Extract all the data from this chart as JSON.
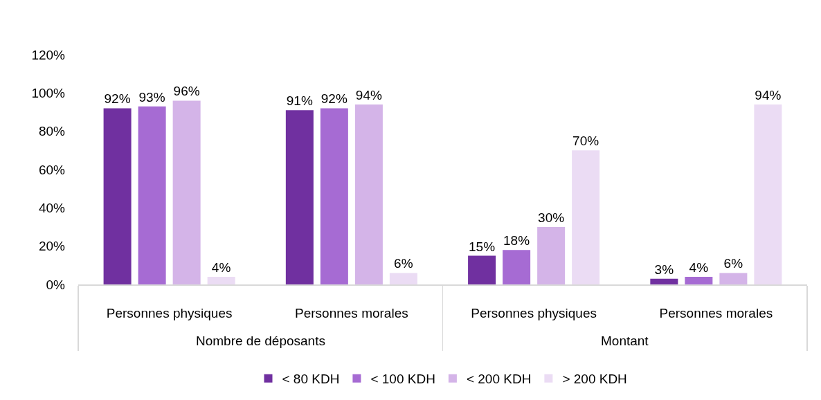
{
  "chart_data": {
    "type": "bar",
    "categories": [
      "Personnes physiques",
      "Personnes morales",
      "Personnes physiques",
      "Personnes morales"
    ],
    "annotations": [
      "Nombre de déposants",
      "Montant"
    ],
    "series": [
      {
        "name": "< 80 KDH",
        "color": "#7030a0",
        "values": [
          92,
          91,
          15,
          3
        ],
        "value_labels": [
          "92%",
          "91%",
          "15%",
          "3%"
        ]
      },
      {
        "name": "< 100 KDH",
        "color": "#a66bd3",
        "values": [
          93,
          92,
          18,
          4
        ],
        "value_labels": [
          "93%",
          "92%",
          "18%",
          "4%"
        ]
      },
      {
        "name": "< 200 KDH",
        "color": "#d4b4e8",
        "values": [
          96,
          94,
          30,
          6
        ],
        "value_labels": [
          "96%",
          "94%",
          "30%",
          "6%"
        ]
      },
      {
        "name": "> 200 KDH",
        "color": "#ebdcf4",
        "values": [
          4,
          6,
          70,
          94
        ],
        "value_labels": [
          "4%",
          "6%",
          "70%",
          "94%"
        ]
      }
    ],
    "ylim": [
      0,
      120
    ],
    "yticks": [
      {
        "value": 0,
        "label": "0%"
      },
      {
        "value": 20,
        "label": "20%"
      },
      {
        "value": 40,
        "label": "40%"
      },
      {
        "value": 60,
        "label": "60%"
      },
      {
        "value": 80,
        "label": "80%"
      },
      {
        "value": 100,
        "label": "100%"
      },
      {
        "value": 120,
        "label": "120%"
      }
    ],
    "legend": "bottom"
  }
}
